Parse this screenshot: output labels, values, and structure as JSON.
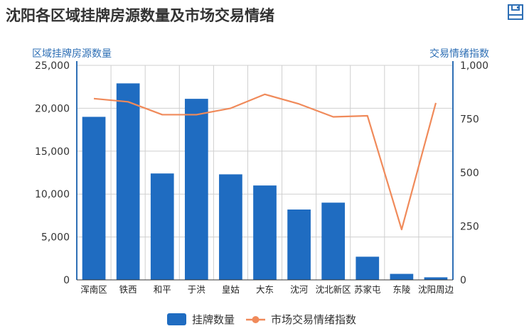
{
  "title": "沈阳各区域挂牌房源数量及市场交易情绪",
  "toolbar": {
    "save_icon": "save-icon"
  },
  "chart_data": {
    "type": "bar+line",
    "categories": [
      "浑南区",
      "铁西",
      "和平",
      "于洪",
      "皇姑",
      "大东",
      "沈河",
      "沈北新区",
      "苏家屯",
      "东陵",
      "沈阳周边"
    ],
    "series": [
      {
        "name": "挂牌数量",
        "type": "bar",
        "axis": "left",
        "color": "#1f6cc1",
        "values": [
          19000,
          22900,
          12400,
          21100,
          12300,
          11000,
          8200,
          9000,
          2700,
          700,
          300
        ]
      },
      {
        "name": "市场交易情绪指数",
        "type": "line",
        "axis": "right",
        "color": "#f08a5a",
        "values": [
          845,
          830,
          770,
          770,
          800,
          865,
          820,
          760,
          765,
          235,
          825
        ]
      }
    ],
    "ylabel_left": "区域挂牌房源数量",
    "ylabel_right": "交易情绪指数",
    "ylim_left": [
      0,
      25000
    ],
    "ylim_right": [
      0,
      1000
    ],
    "yticks_left": [
      "0",
      "5,000",
      "10,000",
      "15,000",
      "20,000",
      "25,000"
    ],
    "yticks_right": [
      "0",
      "250",
      "500",
      "750",
      "1,000"
    ],
    "grid": true,
    "legend": "bottom-center"
  }
}
